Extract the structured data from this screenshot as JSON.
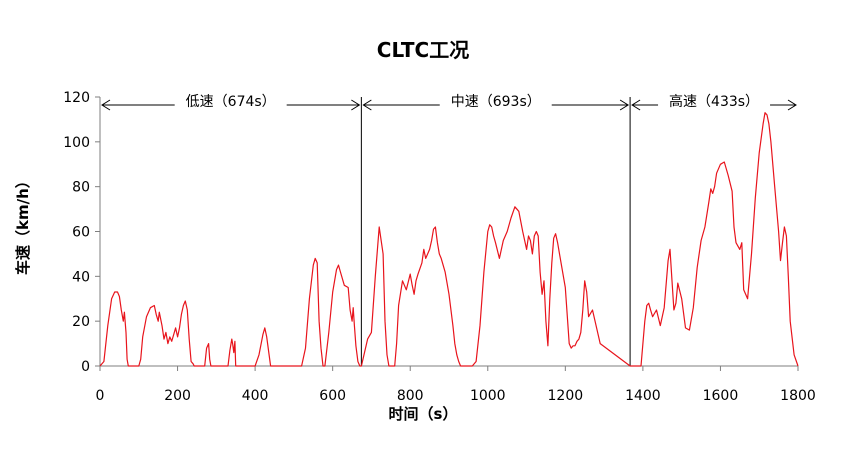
{
  "chart_data": {
    "type": "line",
    "title": "CLTC工况",
    "xlabel": "时间（s）",
    "ylabel": "车速（km/h）",
    "xlim": [
      0,
      1800
    ],
    "ylim": [
      0,
      120
    ],
    "xticks": [
      "0",
      "200",
      "400",
      "600",
      "800",
      "1000",
      "1200",
      "1400",
      "1600",
      "1800"
    ],
    "yticks": [
      "0",
      "20",
      "40",
      "60",
      "80",
      "100",
      "120"
    ],
    "grid": false,
    "line_color": "#e8141c",
    "phases": [
      {
        "label": "低速（674s）",
        "start": 0,
        "end": 674
      },
      {
        "label": "中速（693s）",
        "start": 674,
        "end": 1367
      },
      {
        "label": "高速（433s）",
        "start": 1367,
        "end": 1800
      }
    ],
    "series": [
      {
        "x": [
          0,
          10,
          20,
          30,
          38,
          45,
          50,
          55,
          60,
          63,
          67,
          70,
          73,
          78,
          100,
          105,
          110,
          120,
          130,
          140,
          145,
          150,
          153,
          160,
          165,
          170,
          175,
          180,
          185,
          190,
          195,
          200,
          205,
          210,
          215,
          220,
          225,
          230,
          235,
          240,
          243,
          245,
          248,
          250,
          270,
          275,
          280,
          283,
          286,
          300,
          330,
          335,
          340,
          342,
          345,
          348,
          350,
          400,
          410,
          420,
          425,
          430,
          440,
          450,
          520,
          530,
          540,
          550,
          555,
          560,
          565,
          570,
          575,
          580,
          590,
          600,
          610,
          615,
          620,
          630,
          640,
          645,
          650,
          653,
          656,
          660,
          665,
          670,
          674,
          690,
          700,
          710,
          720,
          730,
          735,
          740,
          745,
          760,
          765,
          770,
          780,
          790,
          800,
          805,
          810,
          815,
          820,
          830,
          835,
          840,
          850,
          855,
          860,
          865,
          870,
          875,
          880,
          890,
          900,
          910,
          915,
          920,
          925,
          930,
          960,
          970,
          980,
          990,
          1000,
          1005,
          1010,
          1015,
          1020,
          1030,
          1040,
          1050,
          1060,
          1070,
          1080,
          1090,
          1100,
          1105,
          1110,
          1115,
          1120,
          1125,
          1130,
          1135,
          1140,
          1145,
          1150,
          1155,
          1160,
          1165,
          1170,
          1175,
          1180,
          1185,
          1200,
          1210,
          1215,
          1220,
          1225,
          1230,
          1235,
          1240,
          1245,
          1250,
          1255,
          1260,
          1270,
          1290,
          1367,
          1385,
          1395,
          1405,
          1410,
          1415,
          1420,
          1425,
          1435,
          1445,
          1455,
          1465,
          1470,
          1475,
          1480,
          1485,
          1490,
          1500,
          1510,
          1520,
          1530,
          1540,
          1550,
          1560,
          1570,
          1575,
          1580,
          1585,
          1590,
          1600,
          1610,
          1620,
          1630,
          1635,
          1640,
          1650,
          1655,
          1660,
          1670,
          1680,
          1690,
          1700,
          1710,
          1715,
          1720,
          1725,
          1730,
          1740,
          1750,
          1755,
          1760,
          1765,
          1770,
          1775,
          1780,
          1790,
          1800
        ],
        "y": [
          0,
          2,
          18,
          30,
          33,
          33,
          31,
          25,
          20,
          24,
          15,
          3,
          0,
          0,
          0,
          3,
          13,
          22,
          26,
          27,
          23,
          20,
          24,
          18,
          12,
          15,
          10,
          13,
          11,
          14,
          17,
          13,
          17,
          23,
          27,
          29,
          25,
          12,
          2,
          1,
          0,
          0,
          0,
          0,
          0,
          8,
          10,
          3,
          0,
          0,
          0,
          7,
          12,
          10,
          6,
          11,
          0,
          0,
          5,
          14,
          17,
          13,
          0,
          0,
          0,
          8,
          30,
          45,
          48,
          46,
          20,
          8,
          0,
          0,
          15,
          33,
          43,
          45,
          42,
          36,
          35,
          25,
          20,
          26,
          18,
          9,
          2,
          0,
          0,
          12,
          15,
          40,
          62,
          50,
          20,
          5,
          0,
          0,
          10,
          27,
          38,
          34,
          41,
          36,
          32,
          38,
          41,
          46,
          52,
          48,
          52,
          56,
          61,
          62,
          55,
          50,
          48,
          42,
          32,
          18,
          10,
          5,
          2,
          0,
          0,
          2,
          18,
          42,
          60,
          63,
          62,
          58,
          55,
          48,
          56,
          60,
          66,
          71,
          69,
          60,
          52,
          58,
          56,
          50,
          58,
          60,
          58,
          42,
          32,
          38,
          20,
          9,
          30,
          46,
          57,
          59,
          55,
          50,
          35,
          10,
          8,
          9,
          9,
          11,
          12,
          15,
          25,
          38,
          33,
          22,
          25,
          10,
          0,
          0,
          0,
          20,
          27,
          28,
          25,
          22,
          25,
          18,
          26,
          47,
          52,
          38,
          25,
          28,
          37,
          30,
          17,
          16,
          26,
          44,
          56,
          62,
          73,
          79,
          77,
          80,
          86,
          90,
          91,
          85,
          78,
          62,
          55,
          52,
          55,
          34,
          30,
          50,
          75,
          95,
          108,
          113,
          112,
          108,
          100,
          80,
          60,
          47,
          55,
          62,
          58,
          40,
          20,
          5,
          0
        ]
      }
    ]
  }
}
